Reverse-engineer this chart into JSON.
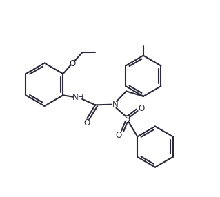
{
  "background_color": "#ffffff",
  "line_color": "#2a2a3a",
  "line_width": 1.5,
  "figsize": [
    3.19,
    2.86
  ],
  "dpi": 100,
  "font_size": 8.5,
  "xlim": [
    0,
    10
  ],
  "ylim": [
    0,
    9
  ]
}
